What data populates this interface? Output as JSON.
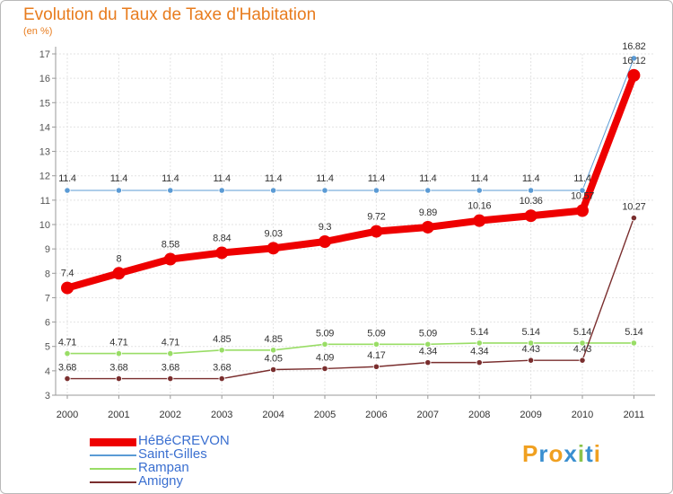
{
  "chart_data": {
    "type": "line",
    "title": "Evolution du Taux de Taxe d'Habitation",
    "unit_label": "(en %)",
    "xlabel": "",
    "ylabel": "",
    "ylim": [
      3,
      17
    ],
    "y_ticks": [
      3,
      4,
      5,
      6,
      7,
      8,
      9,
      10,
      11,
      12,
      13,
      14,
      15,
      16,
      17
    ],
    "categories": [
      "2000",
      "2001",
      "2002",
      "2003",
      "2004",
      "2005",
      "2006",
      "2007",
      "2008",
      "2009",
      "2010",
      "2011"
    ],
    "series": [
      {
        "name": "Saint-Gilles",
        "color": "#5b9bd5",
        "values": [
          11.4,
          11.4,
          11.4,
          11.4,
          11.4,
          11.4,
          11.4,
          11.4,
          11.4,
          11.4,
          11.4,
          16.82
        ],
        "labels": [
          "11.4",
          "11.4",
          "11.4",
          "11.4",
          "11.4",
          "11.4",
          "11.4",
          "11.4",
          "11.4",
          "11.4",
          "11.4",
          "16.82"
        ]
      },
      {
        "name": "Rampan",
        "color": "#99dd66",
        "values": [
          4.71,
          4.71,
          4.71,
          4.85,
          4.85,
          5.09,
          5.09,
          5.09,
          5.14,
          5.14,
          5.14,
          5.14
        ],
        "labels": [
          "4.71",
          "4.71",
          "4.71",
          "4.85",
          "4.85",
          "5.09",
          "5.09",
          "5.09",
          "5.14",
          "5.14",
          "5.14",
          "5.14"
        ]
      },
      {
        "name": "Amigny",
        "color": "#7a2e2e",
        "values": [
          3.68,
          3.68,
          3.68,
          3.68,
          4.05,
          4.09,
          4.17,
          4.34,
          4.34,
          4.43,
          4.43,
          10.27
        ],
        "labels": [
          "3.68",
          "3.68",
          "3.68",
          "3.68",
          "4.05",
          "4.09",
          "4.17",
          "4.34",
          "4.34",
          "4.43",
          "4.43",
          "10.27"
        ]
      },
      {
        "name": "HéBéCREVON",
        "color": "#ee0000",
        "values": [
          7.4,
          8,
          8.58,
          8.84,
          9.03,
          9.3,
          9.72,
          9.89,
          10.16,
          10.36,
          10.57,
          16.12
        ],
        "labels": [
          "7.4",
          "8",
          "8.58",
          "8.84",
          "9.03",
          "9.3",
          "9.72",
          "9.89",
          "10.16",
          "10.36",
          "10.57",
          "16.12"
        ]
      }
    ],
    "legend": [
      "HéBéCREVON",
      "Saint-Gilles",
      "Rampan",
      "Amigny"
    ],
    "legend_position": "bottom-left"
  },
  "logo": {
    "letters": [
      "P",
      "r",
      "o",
      "x",
      "i",
      "t",
      "i"
    ],
    "colors": [
      "#f0a020",
      "#3a8fd0",
      "#f0a020",
      "#3a8fd0",
      "#8bc34a",
      "#3a8fd0",
      "#f0a020"
    ]
  }
}
